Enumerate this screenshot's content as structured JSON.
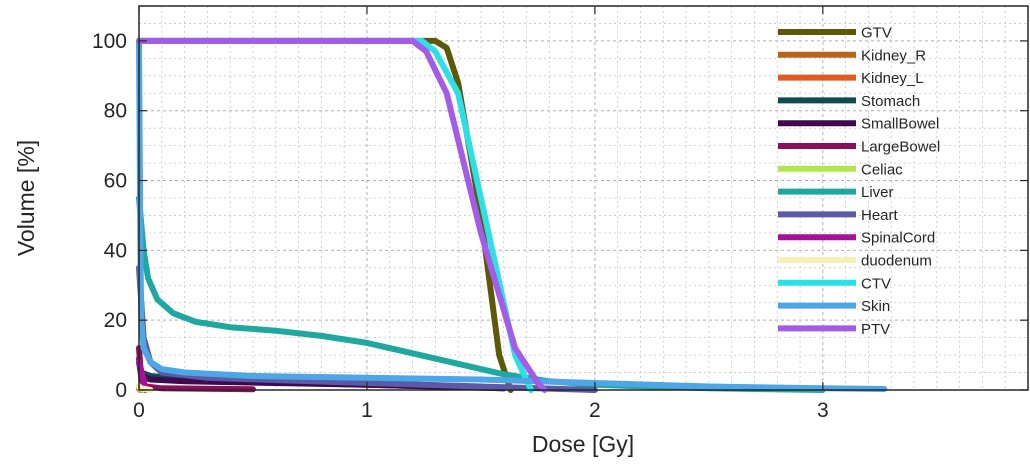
{
  "chart_data": {
    "type": "line",
    "title": "",
    "xlabel": "Dose [Gy]",
    "ylabel": "Volume [%]",
    "xlim": [
      0,
      3.9
    ],
    "ylim": [
      0,
      110
    ],
    "xticks": [
      0,
      1,
      2,
      3
    ],
    "yticks": [
      0,
      20,
      40,
      60,
      80,
      100
    ],
    "grid": "major and minor, dotted",
    "legend_position": "top-right",
    "series": [
      {
        "name": "GTV",
        "color": "#5c5a0a",
        "x": [
          0,
          1.3,
          1.35,
          1.4,
          1.5,
          1.58,
          1.63
        ],
        "y": [
          100,
          100,
          98,
          88,
          50,
          10,
          0
        ]
      },
      {
        "name": "Kidney_R",
        "color": "#b5651d",
        "x": [
          0,
          0.005,
          0.02
        ],
        "y": [
          0.4,
          0.1,
          0
        ]
      },
      {
        "name": "Kidney_L",
        "color": "#e6591e",
        "x": [
          0,
          0.005,
          0.02
        ],
        "y": [
          0.4,
          0.1,
          0
        ]
      },
      {
        "name": "Stomach",
        "color": "#0e4d4d",
        "x": [
          0,
          0.01,
          0.05,
          0.2,
          1.0,
          1.6
        ],
        "y": [
          9,
          5,
          4,
          3,
          1.5,
          0.5
        ]
      },
      {
        "name": "SmallBowel",
        "color": "#3d0a4d",
        "x": [
          0,
          0.01,
          0.05,
          0.2,
          1.0,
          1.6
        ],
        "y": [
          8,
          4,
          3,
          2.5,
          1.5,
          0.5
        ]
      },
      {
        "name": "LargeBowel",
        "color": "#8c0f5c",
        "x": [
          0,
          0.01,
          0.03,
          0.1,
          0.5
        ],
        "y": [
          12,
          3,
          1,
          0.5,
          0.2
        ]
      },
      {
        "name": "Celiac",
        "color": "#b3e64d",
        "x": [
          0,
          0.005,
          0.02
        ],
        "y": [
          1,
          0.3,
          0
        ]
      },
      {
        "name": "Liver",
        "color": "#1ea8a0",
        "x": [
          0,
          0.02,
          0.04,
          0.08,
          0.15,
          0.25,
          0.4,
          0.6,
          0.8,
          1.0,
          1.2,
          1.4,
          1.6,
          1.8,
          2.0,
          2.5,
          3.0
        ],
        "y": [
          55,
          40,
          32,
          26,
          22,
          19.5,
          18,
          17,
          15.5,
          13.5,
          10.5,
          7.5,
          4.5,
          2.5,
          1.5,
          0.5,
          0
        ]
      },
      {
        "name": "Heart",
        "color": "#5a5aa8",
        "x": [
          0,
          0.02,
          0.05,
          0.1,
          0.3,
          1.0,
          1.5,
          2.0
        ],
        "y": [
          35,
          15,
          8,
          5,
          3.5,
          2,
          1,
          0
        ]
      },
      {
        "name": "SpinalCord",
        "color": "#a8109b",
        "x": [
          0,
          0.02,
          0.03
        ],
        "y": [
          8,
          3,
          0
        ]
      },
      {
        "name": "duodenum",
        "color": "#f5f0b4",
        "x": [
          0,
          0.01,
          0.05
        ],
        "y": [
          1,
          0.5,
          0
        ]
      },
      {
        "name": "CTV",
        "color": "#2ee0e6",
        "x": [
          0,
          1.24,
          1.3,
          1.4,
          1.55,
          1.65,
          1.72
        ],
        "y": [
          100,
          100,
          97,
          85,
          40,
          10,
          0
        ]
      },
      {
        "name": "Skin",
        "color": "#4da6e6",
        "x": [
          0,
          0.003,
          0.006,
          0.01,
          0.02,
          0.05,
          0.1,
          0.2,
          0.5,
          1.0,
          1.5,
          2.0,
          2.5,
          3.0,
          3.27
        ],
        "y": [
          100,
          70,
          40,
          20,
          12,
          8,
          6,
          5,
          4,
          3.5,
          3,
          2,
          1,
          0.5,
          0.3
        ]
      },
      {
        "name": "PTV",
        "color": "#a35be8",
        "x": [
          0,
          1.2,
          1.26,
          1.35,
          1.5,
          1.65,
          1.75,
          1.78
        ],
        "y": [
          100,
          100,
          97,
          85,
          45,
          12,
          2,
          0
        ]
      }
    ]
  }
}
